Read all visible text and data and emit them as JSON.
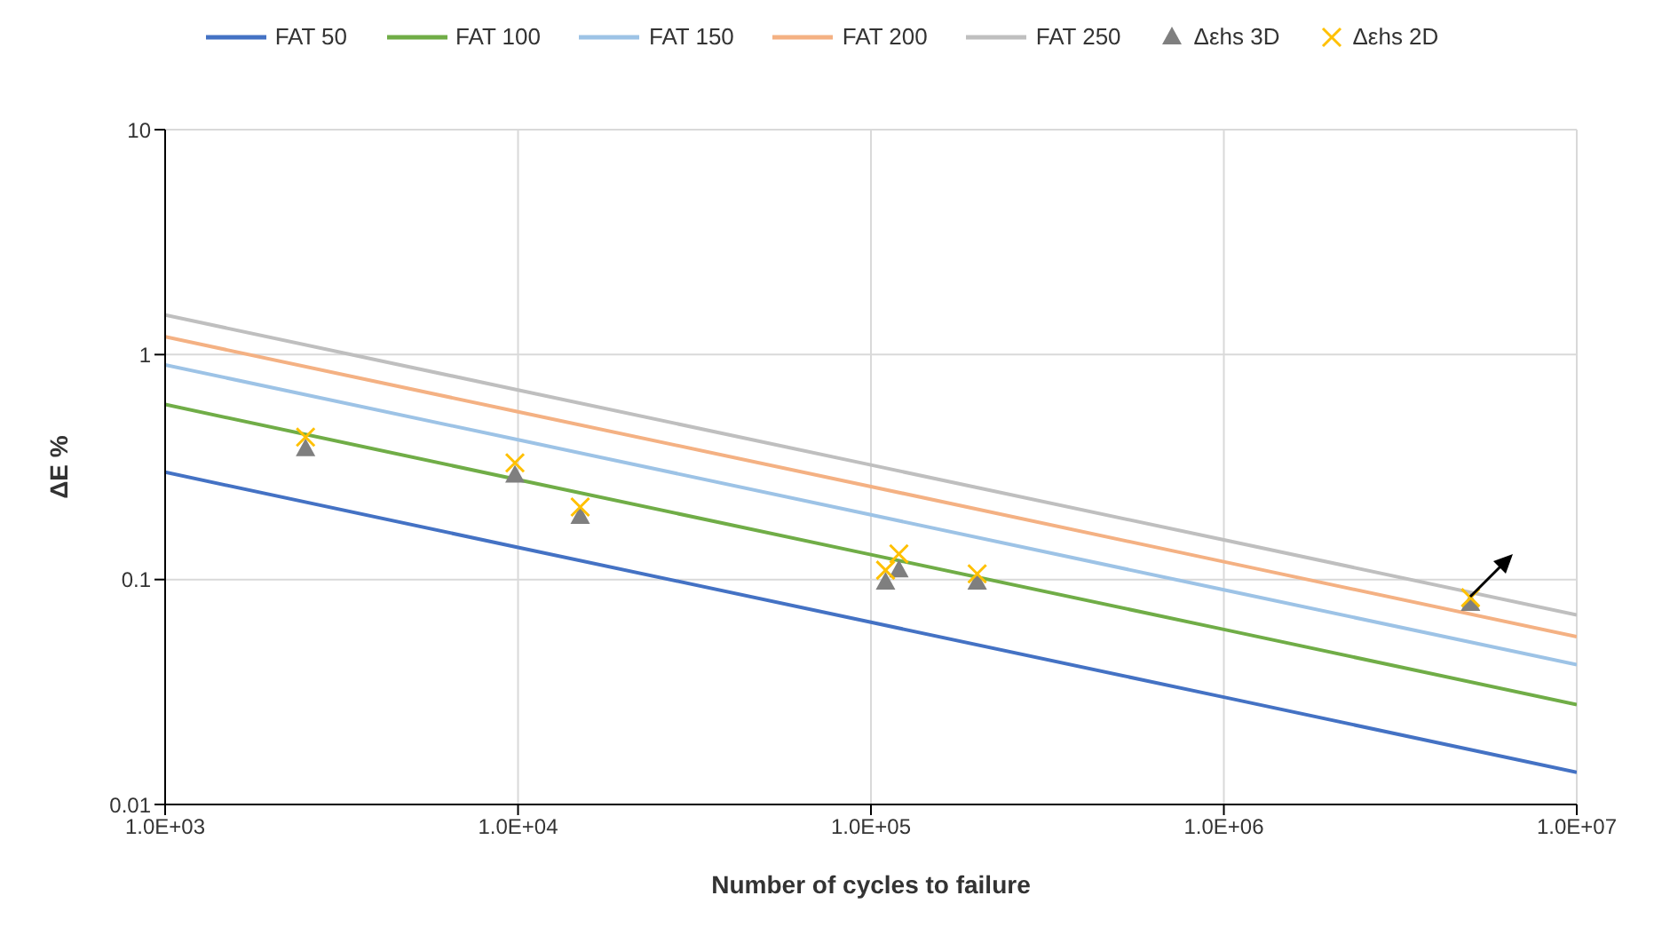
{
  "chart_data": {
    "type": "line",
    "xlabel": "Number of cycles to failure",
    "ylabel": "ΔE %",
    "log": "xy",
    "grid": true,
    "legend": "top",
    "marker": "none",
    "line_style": "solid",
    "xlim": [
      1000,
      10000000
    ],
    "ylim": [
      0.01,
      10
    ],
    "xticks": [
      {
        "value": 1000,
        "label": "1.0E+03"
      },
      {
        "value": 10000,
        "label": "1.0E+04"
      },
      {
        "value": 100000,
        "label": "1.0E+05"
      },
      {
        "value": 1000000,
        "label": "1.0E+06"
      },
      {
        "value": 10000000,
        "label": "1.0E+07"
      }
    ],
    "yticks": [
      0.01,
      0.1,
      1,
      10
    ],
    "series": [
      {
        "name": "FAT 50",
        "color": "#4472c4",
        "x": [
          1000,
          10000,
          100000,
          1000000,
          10000000
        ],
        "values": [
          0.3,
          0.139,
          0.0646,
          0.03,
          0.0139
        ]
      },
      {
        "name": "FAT 100",
        "color": "#70ad47",
        "x": [
          1000,
          10000,
          100000,
          1000000,
          10000000
        ],
        "values": [
          0.6,
          0.278,
          0.129,
          0.06,
          0.0278
        ]
      },
      {
        "name": "FAT 150",
        "color": "#9dc3e6",
        "x": [
          1000,
          10000,
          100000,
          1000000,
          10000000
        ],
        "values": [
          0.9,
          0.418,
          0.194,
          0.09,
          0.0418
        ]
      },
      {
        "name": "FAT 200",
        "color": "#f4b183",
        "x": [
          1000,
          10000,
          100000,
          1000000,
          10000000
        ],
        "values": [
          1.2,
          0.557,
          0.259,
          0.12,
          0.0557
        ]
      },
      {
        "name": "FAT 250",
        "color": "#bfbfbf",
        "x": [
          1000,
          10000,
          100000,
          1000000,
          10000000
        ],
        "values": [
          1.5,
          0.696,
          0.323,
          0.15,
          0.0696
        ]
      },
      {
        "name": "Δεhs 3D",
        "type": "scatter",
        "marker": "triangle",
        "color": "#7f7f7f",
        "x": [
          2500,
          9800,
          15000,
          110000,
          120000,
          200000,
          5000000
        ],
        "values": [
          0.38,
          0.29,
          0.19,
          0.097,
          0.11,
          0.097,
          0.078
        ]
      },
      {
        "name": "Δεhs 2D",
        "type": "scatter",
        "marker": "cross",
        "color": "#ffc000",
        "x": [
          2500,
          9800,
          15000,
          110000,
          120000,
          200000,
          5000000
        ],
        "values": [
          0.43,
          0.33,
          0.21,
          0.11,
          0.13,
          0.106,
          0.083
        ]
      }
    ]
  }
}
